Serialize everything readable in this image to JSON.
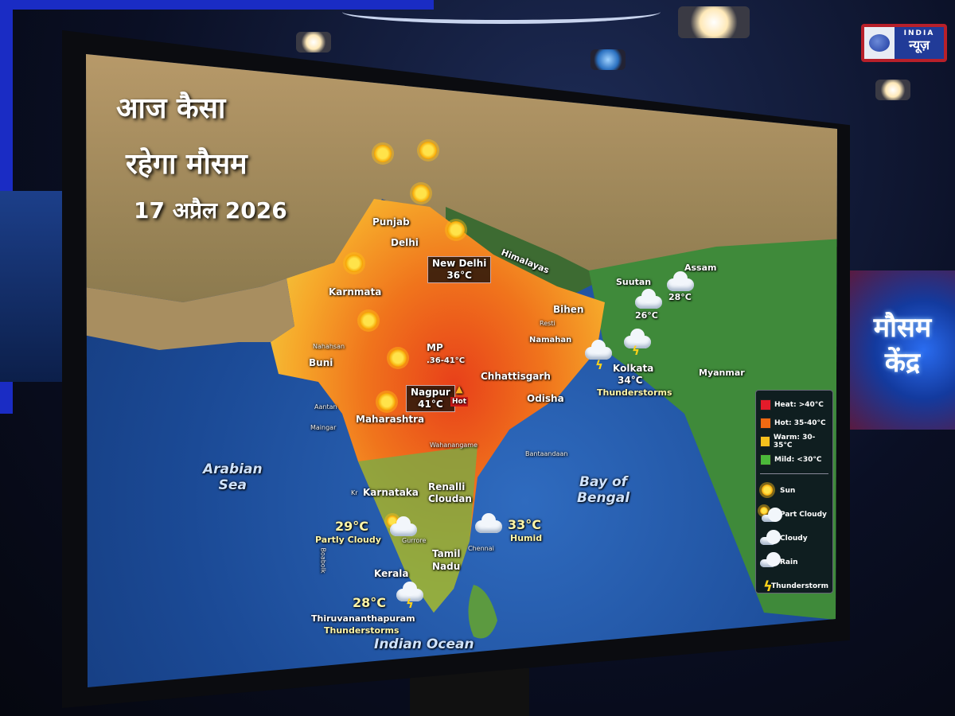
{
  "logo": {
    "line1": "INDIA",
    "line2": "न्यूज़"
  },
  "side_panel": {
    "line1": "मौसम",
    "line2": "केंद्र"
  },
  "title": {
    "line1": "आज कैसा",
    "line2": "रहेगा मौसम",
    "date": "17 अप्रैल 2026"
  },
  "regions": {
    "punjab": "Punjab",
    "delhi": "Delhi",
    "karnataka_north": "Karnmata",
    "bihar": "Bihen",
    "resti": "Resti",
    "namahan": "Namahan",
    "nahahsan": "Nahahsan",
    "buni": "Buni",
    "mp": "MP",
    "mp_temp": ".36-41°C",
    "chhattisgarh": "Chhattisgarh",
    "odisha": "Odisha",
    "maharashtra": "Maharashtra",
    "aantan": "Aantan",
    "maingar": "Maingar",
    "wahanangame": "Wahanangame",
    "bantaandaan": "Bantaandaan",
    "karnataka": "Karnataka",
    "kr": "Kr",
    "renalli": "Renalli\nCloudan",
    "tamil_nadu": "Tamil\nNadu",
    "kerala": "Kerala",
    "chennai": "Chennai",
    "gurrore": "Gurrore",
    "boabolk": "Boabolk",
    "himalayas": "Himalayas",
    "suutan": "Suutan",
    "assam": "Assam",
    "myanmar": "Myanmar",
    "kolkata": "Kolkata"
  },
  "seas": {
    "arabian": "Arabian\nSea",
    "bengal": "Bay of\nBengal",
    "indian": "Indian Ocean"
  },
  "cities": {
    "new_delhi": {
      "name": "New Delhi",
      "temp": "36°C"
    },
    "nagpur": {
      "name": "Nagpur",
      "temp": "41°C",
      "badge": "Hot"
    },
    "kolkata": {
      "temp": "34°C",
      "cond": "Thunderstorms"
    },
    "bhutan_temp": "26°C",
    "assam_temp": "28°C",
    "west": {
      "temp": "29°C",
      "cond": "Partly Cloudy"
    },
    "chennai": {
      "temp": "33°C",
      "cond": "Humid"
    },
    "tvm": {
      "temp": "28°C",
      "name": "Thiruvananthapuram",
      "cond": "Thunderstorms"
    }
  },
  "legend": {
    "temps": [
      {
        "label": "Heat: >40°C",
        "color": "#e41b2a"
      },
      {
        "label": "Hot: 35-40°C",
        "color": "#f06a12"
      },
      {
        "label": "Warm: 30-35°C",
        "color": "#f5c01d"
      },
      {
        "label": "Mild: <30°C",
        "color": "#4bb83a"
      }
    ],
    "icons": [
      {
        "label": "Sun",
        "icon": "sun-icon"
      },
      {
        "label": "Part Cloudy",
        "icon": "part-cloudy-icon"
      },
      {
        "label": "Cloudy",
        "icon": "cloud-icon"
      },
      {
        "label": "Rain",
        "icon": "rain-icon"
      },
      {
        "label": "Thunderstorm",
        "icon": "thunderstorm-icon"
      }
    ]
  }
}
